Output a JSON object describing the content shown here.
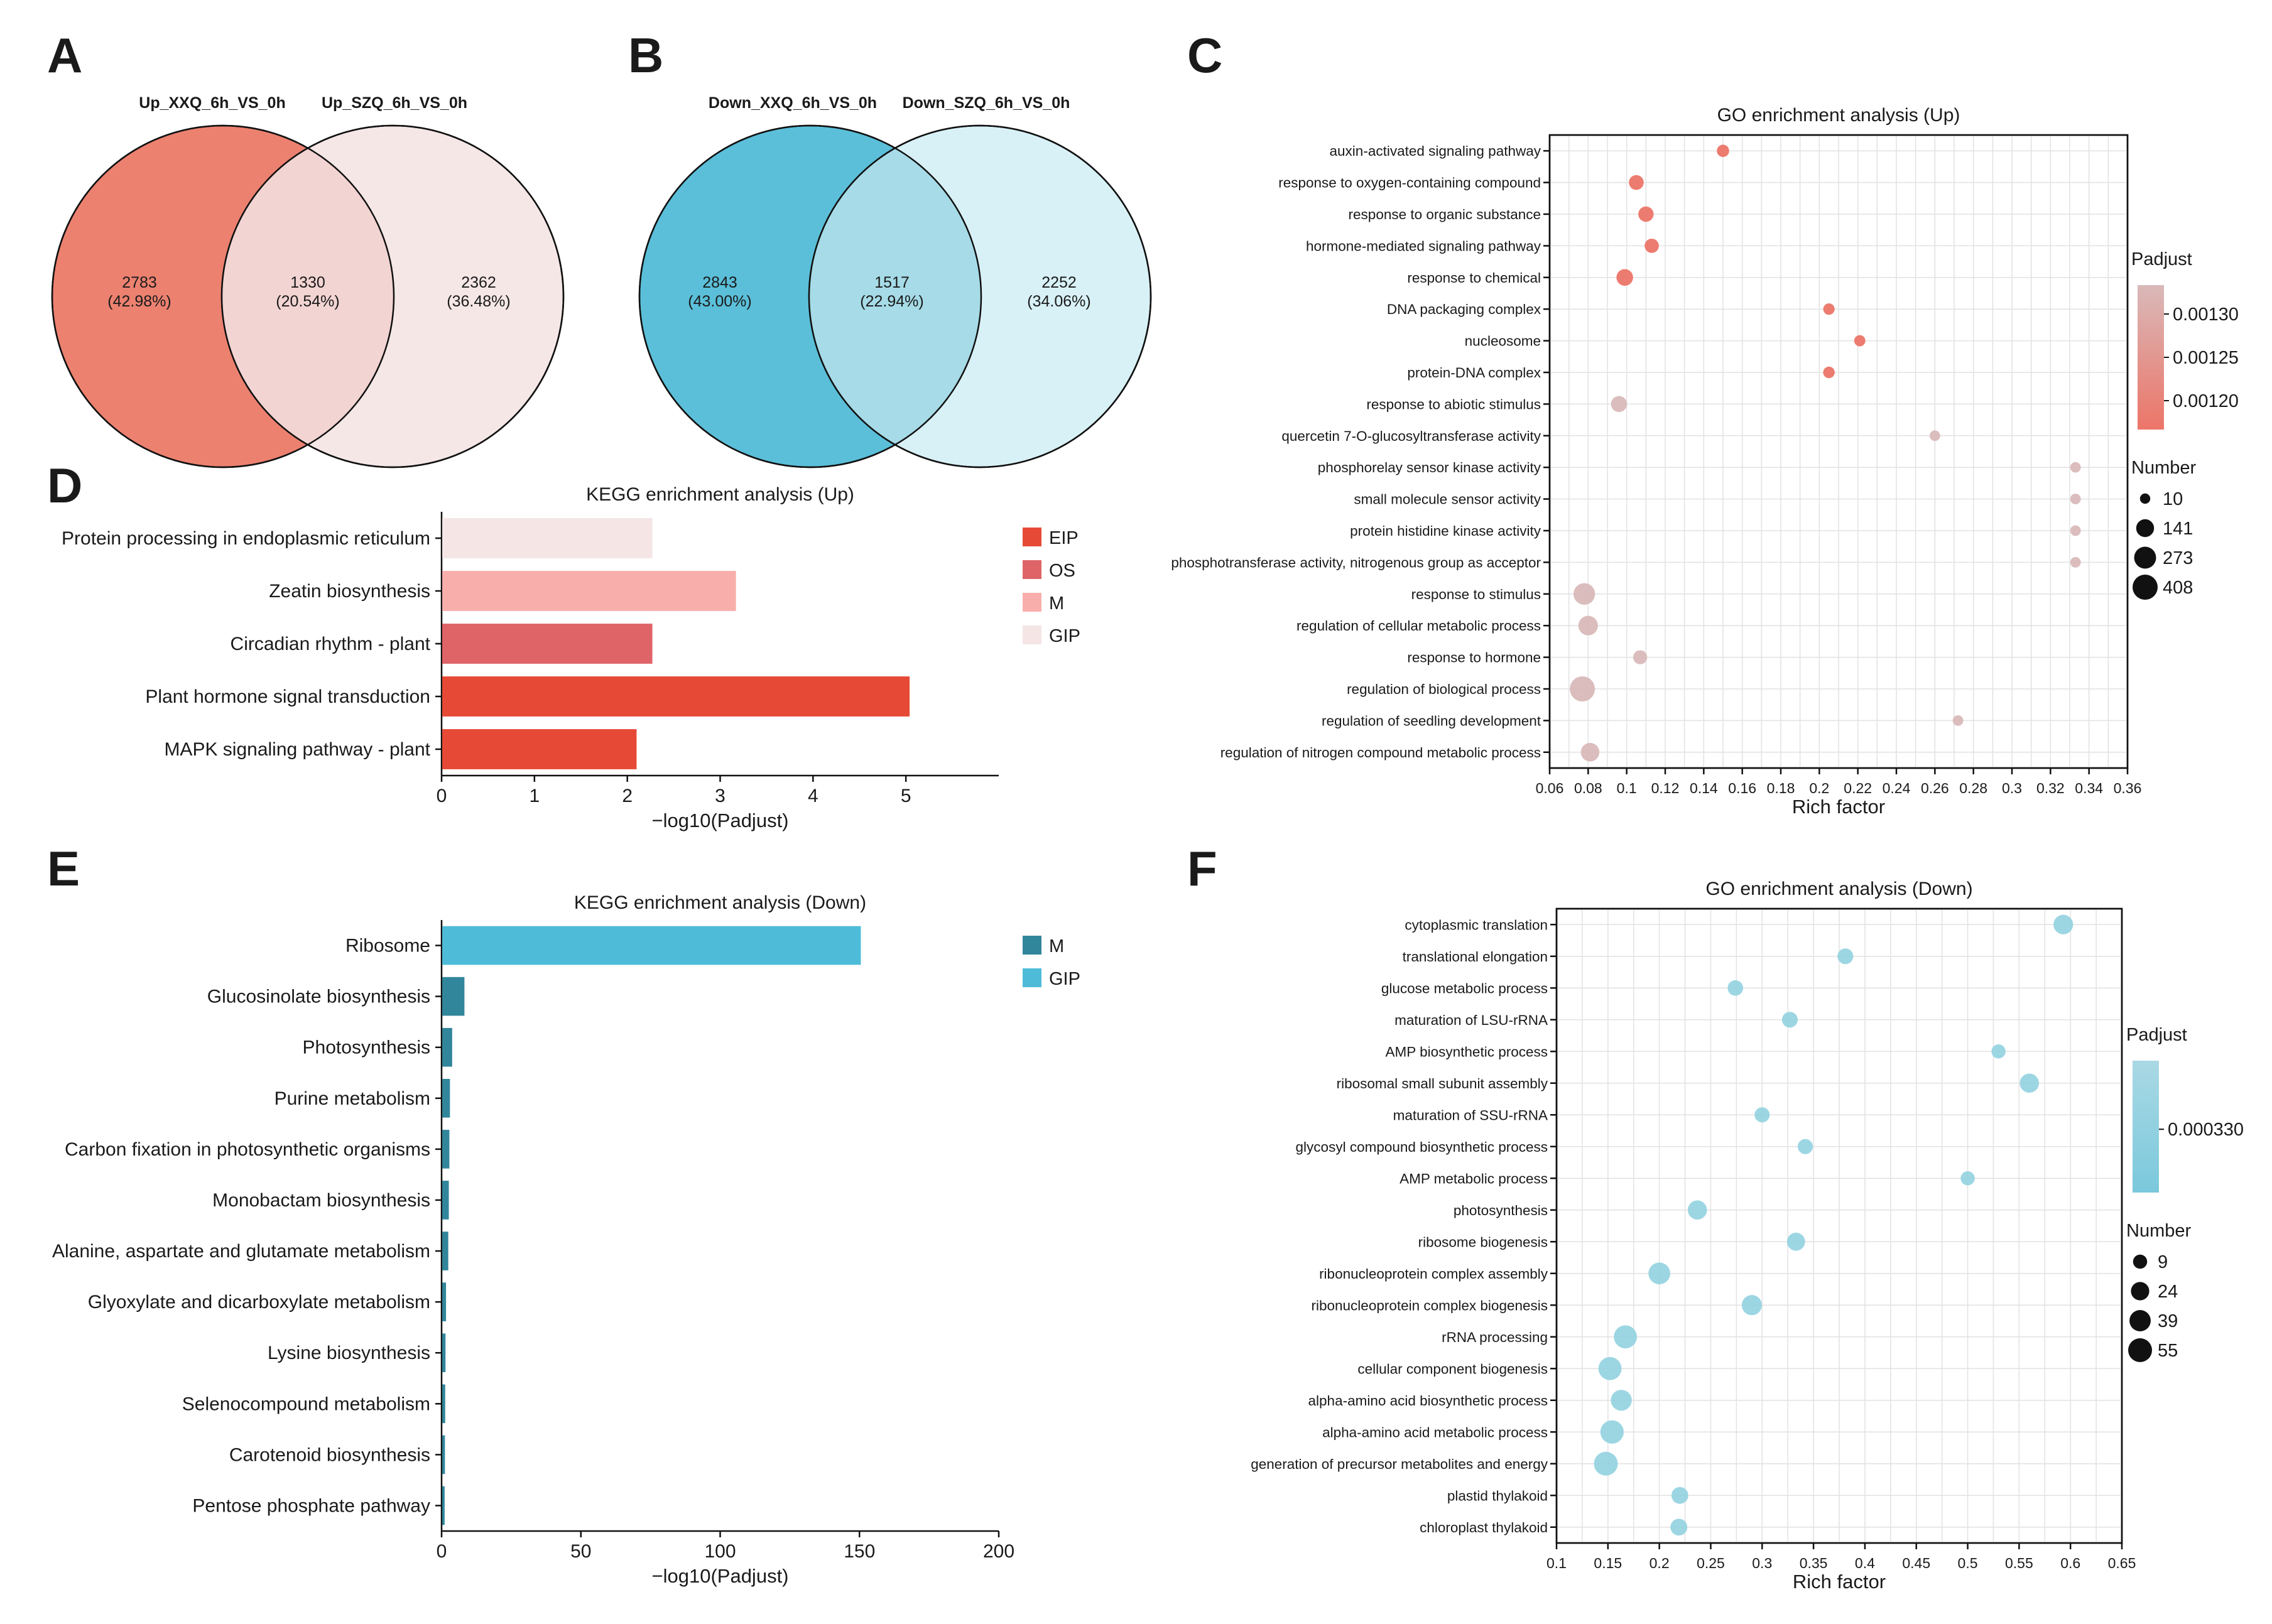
{
  "panels": {
    "A": "A",
    "B": "B",
    "C": "C",
    "D": "D",
    "E": "E",
    "F": "F"
  },
  "chart_data": [
    {
      "panel": "A",
      "type": "venn",
      "sets": [
        "Up_XXQ_6h_VS_0h",
        "Up_SZQ_6h_VS_0h"
      ],
      "regions": [
        {
          "count": "2783",
          "pct": "(42.98%)"
        },
        {
          "count": "1330",
          "pct": "(20.54%)"
        },
        {
          "count": "2362",
          "pct": "(36.48%)"
        }
      ],
      "colors": {
        "left": "#ec8170",
        "overlap": "#f2d4d2",
        "right": "#f6e7e7"
      }
    },
    {
      "panel": "B",
      "type": "venn",
      "sets": [
        "Down_XXQ_6h_VS_0h",
        "Down_SZQ_6h_VS_0h"
      ],
      "regions": [
        {
          "count": "2843",
          "pct": "(43.00%)"
        },
        {
          "count": "1517",
          "pct": "(22.94%)"
        },
        {
          "count": "2252",
          "pct": "(34.06%)"
        }
      ],
      "colors": {
        "left": "#5bbfd9",
        "overlap": "#a6dbe7",
        "right": "#d8f1f6"
      }
    },
    {
      "panel": "C",
      "type": "scatter",
      "title": "GO enrichment analysis (Up)",
      "xlabel": "Rich factor",
      "xlim": [
        0.06,
        0.36
      ],
      "xticks": [
        "0.06",
        "0.08",
        "0.1",
        "0.12",
        "0.14",
        "0.16",
        "0.18",
        "0.2",
        "0.22",
        "0.24",
        "0.26",
        "0.28",
        "0.3",
        "0.32",
        "0.34",
        "0.36"
      ],
      "categories": [
        "auxin-activated signaling pathway",
        "response to oxygen-containing compound",
        "response to organic substance",
        "hormone-mediated signaling pathway",
        "response to chemical",
        "DNA packaging complex",
        "nucleosome",
        "protein-DNA complex",
        "response to abiotic stimulus",
        "quercetin 7-O-glucosyltransferase activity",
        "phosphorelay sensor kinase activity",
        "small molecule sensor activity",
        "protein histidine kinase activity",
        "phosphotransferase activity, nitrogenous group as acceptor",
        "response to stimulus",
        "regulation of cellular metabolic process",
        "response to hormone",
        "regulation of biological process",
        "regulation of seedling development",
        "regulation of nitrogen compound metabolic process"
      ],
      "x": [
        0.15,
        0.105,
        0.11,
        0.113,
        0.099,
        0.205,
        0.221,
        0.205,
        0.096,
        0.26,
        0.333,
        0.333,
        0.333,
        0.333,
        0.078,
        0.08,
        0.107,
        0.077,
        0.272,
        0.081
      ],
      "size": [
        30,
        70,
        80,
        60,
        110,
        20,
        18,
        22,
        95,
        12,
        12,
        12,
        12,
        12,
        260,
        190,
        55,
        408,
        12,
        160
      ],
      "color_value": [
        0.00119,
        0.00119,
        0.00119,
        0.00119,
        0.00119,
        0.00119,
        0.00119,
        0.00119,
        0.00131,
        0.00131,
        0.00131,
        0.00131,
        0.00131,
        0.00131,
        0.00131,
        0.00131,
        0.00131,
        0.00131,
        0.00131,
        0.00131
      ],
      "legend": {
        "color_title": "Padjust",
        "color_ticks": [
          "0.00130",
          "0.00125",
          "0.00120"
        ],
        "color_range": [
          "#d9b9b9",
          "#ec7568"
        ],
        "size_title": "Number",
        "size_ticks": [
          "10",
          "141",
          "273",
          "408"
        ]
      }
    },
    {
      "panel": "D",
      "type": "bar",
      "orientation": "horizontal",
      "title": "KEGG enrichment analysis (Up)",
      "xlabel": "−log10(Padjust)",
      "xlim": [
        0,
        6
      ],
      "xticks": [
        "0",
        "1",
        "2",
        "3",
        "4",
        "5"
      ],
      "categories": [
        "Protein processing in endoplasmic reticulum",
        "Zeatin biosynthesis",
        "Circadian rhythm - plant",
        "Plant hormone signal transduction",
        "MAPK signaling pathway - plant"
      ],
      "values": [
        2.27,
        3.17,
        2.27,
        5.04,
        2.1
      ],
      "groups": [
        "GIP",
        "M",
        "OS",
        "EIP",
        "EIP"
      ],
      "legend": [
        {
          "label": "EIP",
          "color": "#e64a36"
        },
        {
          "label": "OS",
          "color": "#df6468"
        },
        {
          "label": "M",
          "color": "#f8aeab"
        },
        {
          "label": "GIP",
          "color": "#f5e5e5"
        }
      ]
    },
    {
      "panel": "E",
      "type": "bar",
      "orientation": "horizontal",
      "title": "KEGG enrichment analysis (Down)",
      "xlabel": "−log10(Padjust)",
      "xlim": [
        0,
        200
      ],
      "xticks": [
        "0",
        "50",
        "100",
        "150",
        "200"
      ],
      "categories": [
        "Ribosome",
        "Glucosinolate biosynthesis",
        "Photosynthesis",
        "Purine metabolism",
        "Carbon fixation in photosynthetic organisms",
        "Monobactam biosynthesis",
        "Alanine, aspartate and glutamate metabolism",
        "Glyoxylate and dicarboxylate metabolism",
        "Lysine biosynthesis",
        "Selenocompound metabolism",
        "Carotenoid biosynthesis",
        "Pentose phosphate pathway"
      ],
      "values": [
        150.5,
        8.2,
        3.8,
        3.0,
        2.8,
        2.6,
        2.4,
        1.6,
        1.4,
        1.3,
        1.2,
        1.1
      ],
      "groups": [
        "GIP",
        "M",
        "M",
        "M",
        "M",
        "M",
        "M",
        "M",
        "M",
        "M",
        "M",
        "M"
      ],
      "legend": [
        {
          "label": "M",
          "color": "#32869b"
        },
        {
          "label": "GIP",
          "color": "#4ebcd8"
        }
      ]
    },
    {
      "panel": "F",
      "type": "scatter",
      "title": "GO enrichment analysis (Down)",
      "xlabel": "Rich factor",
      "xlim": [
        0.1,
        0.65
      ],
      "xticks": [
        "0.1",
        "0.15",
        "0.2",
        "0.25",
        "0.3",
        "0.35",
        "0.4",
        "0.45",
        "0.5",
        "0.55",
        "0.6",
        "0.65"
      ],
      "categories": [
        "cytoplasmic translation",
        "translational elongation",
        "glucose metabolic process",
        "maturation of LSU-rRNA",
        "AMP biosynthetic process",
        "ribosomal small subunit assembly",
        "maturation of SSU-rRNA",
        "glycosyl compound biosynthetic process",
        "AMP metabolic process",
        "photosynthesis",
        "ribosome biogenesis",
        "ribonucleoprotein complex assembly",
        "ribonucleoprotein complex biogenesis",
        "rRNA processing",
        "cellular component biogenesis",
        "alpha-amino acid biosynthetic process",
        "alpha-amino acid metabolic process",
        "generation of precursor metabolites and energy",
        "plastid thylakoid",
        "chloroplast thylakoid"
      ],
      "x": [
        0.593,
        0.381,
        0.274,
        0.327,
        0.53,
        0.56,
        0.3,
        0.342,
        0.5,
        0.237,
        0.333,
        0.2,
        0.29,
        0.167,
        0.152,
        0.163,
        0.154,
        0.148,
        0.22,
        0.219
      ],
      "size": [
        30,
        14,
        13,
        14,
        9,
        28,
        12,
        12,
        9,
        28,
        23,
        42,
        33,
        50,
        50,
        37,
        52,
        55,
        18,
        18
      ],
      "color_value": [
        0.00033,
        0.00033,
        0.00033,
        0.00033,
        0.00033,
        0.00033,
        0.00033,
        0.00033,
        0.00033,
        0.00033,
        0.00033,
        0.00033,
        0.00033,
        0.00033,
        0.00033,
        0.00033,
        0.00033,
        0.00033,
        0.00033,
        0.00033
      ],
      "legend": {
        "color_title": "Padjust",
        "color_ticks": [
          "0.000330"
        ],
        "color_range": [
          "#a9d9e4",
          "#7bc8dc"
        ],
        "size_title": "Number",
        "size_ticks": [
          "9",
          "24",
          "39",
          "55"
        ]
      }
    }
  ]
}
